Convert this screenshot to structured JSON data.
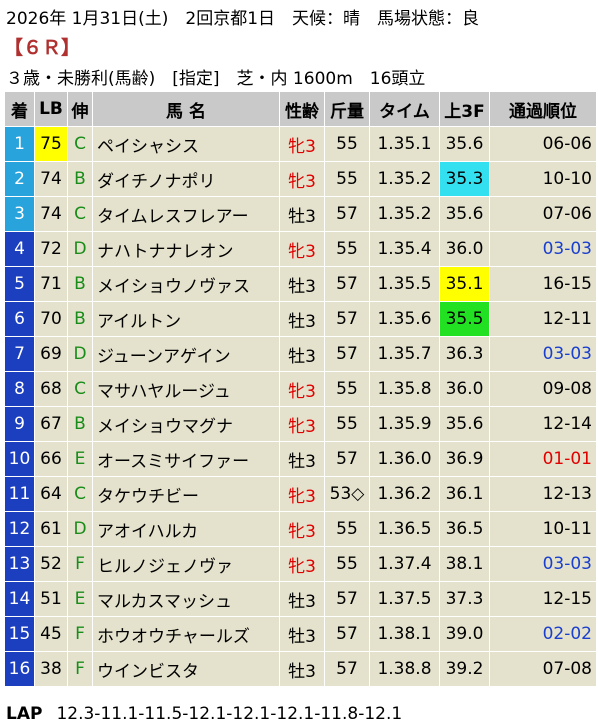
{
  "header": {
    "line1": "2026年 1月31日(土)　2回京都1日　天候：晴　馬場状態：良",
    "race": "【６Ｒ】",
    "line3": "３歳・未勝利(馬齢)　[指定]　芝・内 1600m　16頭立"
  },
  "columns": [
    "着",
    "LB",
    "伸",
    "馬 名",
    "性齢",
    "斤量",
    "タイム",
    "上3F",
    "通過順位"
  ],
  "colors": {
    "rank_blue": "#1c3fbf",
    "rank_cyan": "#29a3dc",
    "lb_highlight": "#ffff00",
    "f3_cyan": "#33e0f0",
    "f3_yellow": "#ffff00",
    "f3_green": "#22e022",
    "female_red": "#e00000",
    "pass_blue": "#1a3fcf",
    "pass_red": "#e00000",
    "nobi_green": "#1a8c1a"
  },
  "rows": [
    {
      "rank": "1",
      "lb": "75",
      "nobi": "C",
      "name": "ペイシャシス",
      "sex": "牝3",
      "weight": "55",
      "time": "1.35.1",
      "f3": "35.6",
      "pass": "06-06",
      "lb_hl": true,
      "f3_hl": "",
      "female": true,
      "pass_color": ""
    },
    {
      "rank": "2",
      "lb": "74",
      "nobi": "B",
      "name": "ダイチノナポリ",
      "sex": "牝3",
      "weight": "55",
      "time": "1.35.2",
      "f3": "35.3",
      "pass": "10-10",
      "lb_hl": false,
      "f3_hl": "cyan",
      "female": true,
      "pass_color": ""
    },
    {
      "rank": "3",
      "lb": "74",
      "nobi": "C",
      "name": "タイムレスフレアー",
      "sex": "牡3",
      "weight": "57",
      "time": "1.35.2",
      "f3": "35.6",
      "pass": "07-06",
      "lb_hl": false,
      "f3_hl": "",
      "female": false,
      "pass_color": ""
    },
    {
      "rank": "4",
      "lb": "72",
      "nobi": "D",
      "name": "ナハトナナレオン",
      "sex": "牝3",
      "weight": "55",
      "time": "1.35.4",
      "f3": "36.0",
      "pass": "03-03",
      "lb_hl": false,
      "f3_hl": "",
      "female": true,
      "pass_color": "blue"
    },
    {
      "rank": "5",
      "lb": "71",
      "nobi": "B",
      "name": "メイショウノヴァス",
      "sex": "牡3",
      "weight": "57",
      "time": "1.35.5",
      "f3": "35.1",
      "pass": "16-15",
      "lb_hl": false,
      "f3_hl": "yellow",
      "female": false,
      "pass_color": ""
    },
    {
      "rank": "6",
      "lb": "70",
      "nobi": "B",
      "name": "アイルトン",
      "sex": "牡3",
      "weight": "57",
      "time": "1.35.6",
      "f3": "35.5",
      "pass": "12-11",
      "lb_hl": false,
      "f3_hl": "green",
      "female": false,
      "pass_color": ""
    },
    {
      "rank": "7",
      "lb": "69",
      "nobi": "D",
      "name": "ジューンアゲイン",
      "sex": "牡3",
      "weight": "57",
      "time": "1.35.7",
      "f3": "36.3",
      "pass": "03-03",
      "lb_hl": false,
      "f3_hl": "",
      "female": false,
      "pass_color": "blue"
    },
    {
      "rank": "8",
      "lb": "68",
      "nobi": "C",
      "name": "マサハヤルージュ",
      "sex": "牝3",
      "weight": "55",
      "time": "1.35.8",
      "f3": "36.0",
      "pass": "09-08",
      "lb_hl": false,
      "f3_hl": "",
      "female": true,
      "pass_color": ""
    },
    {
      "rank": "9",
      "lb": "67",
      "nobi": "B",
      "name": "メイショウマグナ",
      "sex": "牝3",
      "weight": "55",
      "time": "1.35.9",
      "f3": "35.6",
      "pass": "12-14",
      "lb_hl": false,
      "f3_hl": "",
      "female": true,
      "pass_color": ""
    },
    {
      "rank": "10",
      "lb": "66",
      "nobi": "E",
      "name": "オースミサイファー",
      "sex": "牡3",
      "weight": "57",
      "time": "1.36.0",
      "f3": "36.9",
      "pass": "01-01",
      "lb_hl": false,
      "f3_hl": "",
      "female": false,
      "pass_color": "red"
    },
    {
      "rank": "11",
      "lb": "64",
      "nobi": "C",
      "name": "タケウチビー",
      "sex": "牝3",
      "weight": "53◇",
      "time": "1.36.2",
      "f3": "36.1",
      "pass": "12-13",
      "lb_hl": false,
      "f3_hl": "",
      "female": true,
      "pass_color": ""
    },
    {
      "rank": "12",
      "lb": "61",
      "nobi": "D",
      "name": "アオイハルカ",
      "sex": "牝3",
      "weight": "55",
      "time": "1.36.5",
      "f3": "36.5",
      "pass": "10-11",
      "lb_hl": false,
      "f3_hl": "",
      "female": true,
      "pass_color": ""
    },
    {
      "rank": "13",
      "lb": "52",
      "nobi": "F",
      "name": "ヒルノジェノヴァ",
      "sex": "牝3",
      "weight": "55",
      "time": "1.37.4",
      "f3": "38.1",
      "pass": "03-03",
      "lb_hl": false,
      "f3_hl": "",
      "female": true,
      "pass_color": "blue"
    },
    {
      "rank": "14",
      "lb": "51",
      "nobi": "E",
      "name": "マルカスマッシュ",
      "sex": "牡3",
      "weight": "57",
      "time": "1.37.5",
      "f3": "37.3",
      "pass": "12-15",
      "lb_hl": false,
      "f3_hl": "",
      "female": false,
      "pass_color": ""
    },
    {
      "rank": "15",
      "lb": "45",
      "nobi": "F",
      "name": "ホウオウチャールズ",
      "sex": "牡3",
      "weight": "57",
      "time": "1.38.1",
      "f3": "39.0",
      "pass": "02-02",
      "lb_hl": false,
      "f3_hl": "",
      "female": false,
      "pass_color": "blue"
    },
    {
      "rank": "16",
      "lb": "38",
      "nobi": "F",
      "name": "ウインビスタ",
      "sex": "牡3",
      "weight": "57",
      "time": "1.38.8",
      "f3": "39.2",
      "pass": "07-08",
      "lb_hl": false,
      "f3_hl": "",
      "female": false,
      "pass_color": ""
    }
  ],
  "lap": {
    "label": "LAP",
    "values": "12.3-11.1-11.5-12.1-12.1-12.1-11.8-12.1"
  }
}
